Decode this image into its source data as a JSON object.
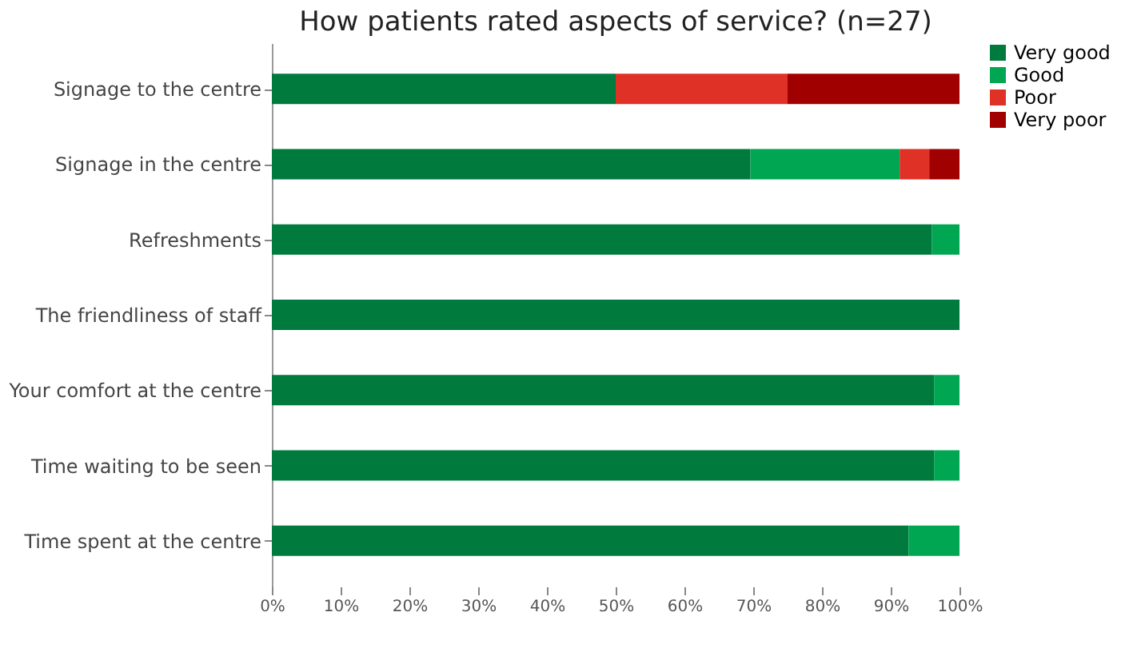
{
  "chart_data": {
    "type": "bar",
    "orientation": "horizontal",
    "stacked": true,
    "title": "How patients rated aspects of service? (n=27)",
    "categories": [
      "Signage to the centre",
      "Signage in the centre",
      "Refreshments",
      "The friendliness of staff",
      "Your comfort at the centre",
      "Time waiting to be seen",
      "Time spent at the centre"
    ],
    "series": [
      {
        "name": "Very good",
        "color": "#007a3d",
        "values": [
          50,
          69.6,
          96,
          100,
          96.3,
          96.3,
          92.6
        ]
      },
      {
        "name": "Good",
        "color": "#00a651",
        "values": [
          0,
          21.7,
          4,
          0,
          3.7,
          3.7,
          7.4
        ]
      },
      {
        "name": "Poor",
        "color": "#e03127",
        "values": [
          25,
          4.3,
          0,
          0,
          0,
          0,
          0
        ]
      },
      {
        "name": "Very poor",
        "color": "#a00000",
        "values": [
          25,
          4.4,
          0,
          0,
          0,
          0,
          0
        ]
      }
    ],
    "xlim": [
      0,
      100
    ],
    "xticks": [
      {
        "value": 0,
        "label": "0%"
      },
      {
        "value": 10,
        "label": "10%"
      },
      {
        "value": 20,
        "label": "20%"
      },
      {
        "value": 30,
        "label": "30%"
      },
      {
        "value": 40,
        "label": "40%"
      },
      {
        "value": 50,
        "label": "50%"
      },
      {
        "value": 60,
        "label": "60%"
      },
      {
        "value": 70,
        "label": "70%"
      },
      {
        "value": 80,
        "label": "80%"
      },
      {
        "value": 90,
        "label": "90%"
      },
      {
        "value": 100,
        "label": "100%"
      }
    ],
    "grid": false,
    "legend": "right"
  }
}
